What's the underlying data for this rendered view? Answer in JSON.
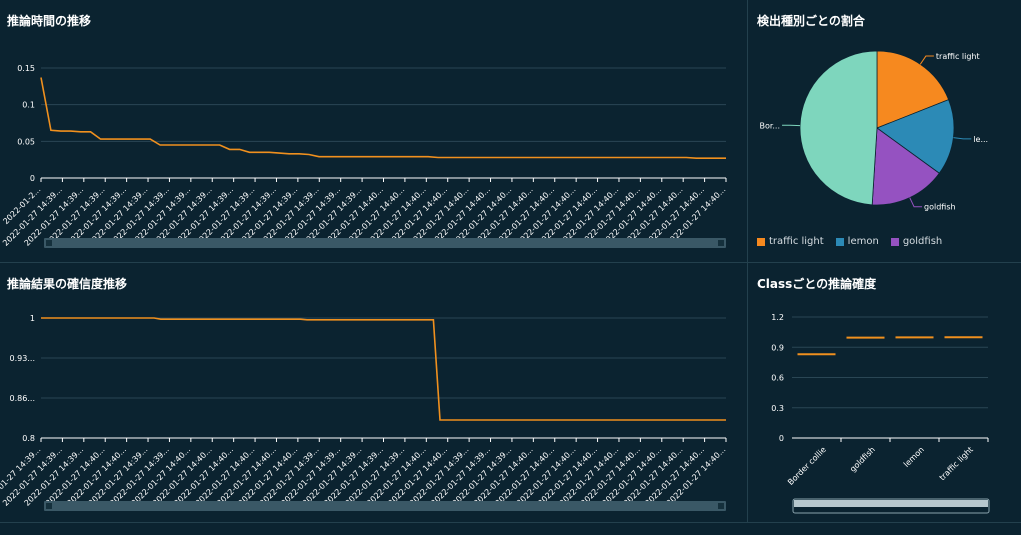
{
  "colors": {
    "background": "#0b2330",
    "grid": "#2a4654",
    "line": "#f0901e",
    "scrollbar": "#3a5866",
    "pie": [
      "#f6891f",
      "#2c8ab6",
      "#9552c1",
      "#7ed6bd"
    ]
  },
  "panels": {
    "inference_time": {
      "title": "推論時間の推移"
    },
    "pie": {
      "title": "検出種別ごとの割合"
    },
    "confidence": {
      "title": "推論結果の確信度推移"
    },
    "class_conf": {
      "title": "Classごとの推論確度"
    }
  },
  "chart_data": [
    {
      "id": "inference_time",
      "type": "line",
      "title": "推論時間の推移",
      "ylim": [
        0,
        0.15
      ],
      "yticks": [
        "0",
        "0.05",
        "0.1",
        "0.15"
      ],
      "ytick_values": [
        0,
        0.05,
        0.1,
        0.15
      ],
      "values": [
        0.137,
        0.065,
        0.064,
        0.064,
        0.063,
        0.063,
        0.053,
        0.053,
        0.053,
        0.053,
        0.053,
        0.053,
        0.045,
        0.045,
        0.045,
        0.045,
        0.045,
        0.045,
        0.045,
        0.039,
        0.039,
        0.035,
        0.035,
        0.035,
        0.034,
        0.033,
        0.033,
        0.032,
        0.029,
        0.029,
        0.029,
        0.029,
        0.029,
        0.029,
        0.029,
        0.029,
        0.029,
        0.029,
        0.029,
        0.029,
        0.028,
        0.028,
        0.028,
        0.028,
        0.028,
        0.028,
        0.028,
        0.028,
        0.028,
        0.028,
        0.028,
        0.028,
        0.028,
        0.028,
        0.028,
        0.028,
        0.028,
        0.028,
        0.028,
        0.028,
        0.028,
        0.028,
        0.028,
        0.028,
        0.028,
        0.028,
        0.027,
        0.027,
        0.027,
        0.027
      ],
      "xlabels": [
        "2022-01-2...",
        "2022-01-27 14:39...",
        "2022-01-27 14:39...",
        "2022-01-27 14:39...",
        "2022-01-27 14:39...",
        "2022-01-27 14:39...",
        "2022-01-27 14:39...",
        "2022-01-27 14:39...",
        "2022-01-27 14:39...",
        "2022-01-27 14:39...",
        "2022-01-27 14:39...",
        "2022-01-27 14:39...",
        "2022-01-27 14:39...",
        "2022-01-27 14:39...",
        "2022-01-27 14:39...",
        "2022-01-27 14:39...",
        "2022-01-27 14:40...",
        "2022-01-27 14:40...",
        "2022-01-27 14:40...",
        "2022-01-27 14:40...",
        "2022-01-27 14:40...",
        "2022-01-27 14:40...",
        "2022-01-27 14:40...",
        "2022-01-27 14:40...",
        "2022-01-27 14:40...",
        "2022-01-27 14:40...",
        "2022-01-27 14:40...",
        "2022-01-27 14:40...",
        "2022-01-27 14:40...",
        "2022-01-27 14:40...",
        "2022-01-27 14:40...",
        "2022-01-27 14:40...",
        "2022-01-27 14:40..."
      ]
    },
    {
      "id": "detection_ratio",
      "type": "pie",
      "title": "検出種別ごとの割合",
      "slices": [
        {
          "label": "traffic light",
          "short_label": "traffic light",
          "value": 0.19
        },
        {
          "label": "lemon",
          "short_label": "le...",
          "value": 0.16
        },
        {
          "label": "goldfish",
          "short_label": "goldfish",
          "value": 0.16
        },
        {
          "label": "Border collie",
          "short_label": "Bor...",
          "value": 0.49
        }
      ],
      "legend": [
        "traffic light",
        "lemon",
        "goldfish"
      ]
    },
    {
      "id": "confidence",
      "type": "line",
      "title": "推論結果の確信度推移",
      "ylim": [
        0.8,
        1.0
      ],
      "yticks": [
        "0.8",
        "0.86...",
        "0.93...",
        "1"
      ],
      "ytick_values": [
        0.8,
        0.8667,
        0.9333,
        1.0
      ],
      "values": [
        1.0,
        1.0,
        1.0,
        1.0,
        1.0,
        1.0,
        1.0,
        1.0,
        1.0,
        1.0,
        1.0,
        1.0,
        1.0,
        1.0,
        1.0,
        1.0,
        1.0,
        1.0,
        0.998,
        0.998,
        0.998,
        0.998,
        0.998,
        0.998,
        0.998,
        0.998,
        0.998,
        0.998,
        0.998,
        0.998,
        0.998,
        0.998,
        0.998,
        0.998,
        0.998,
        0.998,
        0.998,
        0.998,
        0.998,
        0.998,
        0.997,
        0.997,
        0.997,
        0.997,
        0.997,
        0.997,
        0.997,
        0.997,
        0.997,
        0.997,
        0.997,
        0.997,
        0.997,
        0.997,
        0.997,
        0.997,
        0.997,
        0.997,
        0.997,
        0.997,
        0.83,
        0.83,
        0.83,
        0.83,
        0.83,
        0.83,
        0.83,
        0.83,
        0.83,
        0.83,
        0.83,
        0.83,
        0.83,
        0.83,
        0.83,
        0.83,
        0.83,
        0.83,
        0.83,
        0.83,
        0.83,
        0.83,
        0.83,
        0.83,
        0.83,
        0.83,
        0.83,
        0.83,
        0.83,
        0.83,
        0.83,
        0.83,
        0.83,
        0.83,
        0.83,
        0.83,
        0.83,
        0.83,
        0.83,
        0.83,
        0.83,
        0.83,
        0.83,
        0.83
      ],
      "xlabels": [
        "2022-01-27 14:39...",
        "2022-01-27 14:39...",
        "2022-01-27 14:39...",
        "2022-01-27 14:40...",
        "2022-01-27 14:40...",
        "2022-01-27 14:39...",
        "2022-01-27 14:39...",
        "2022-01-27 14:40...",
        "2022-01-27 14:40...",
        "2022-01-27 14:40...",
        "2022-01-27 14:40...",
        "2022-01-27 14:40...",
        "2022-01-27 14:40...",
        "2022-01-27 14:39...",
        "2022-01-27 14:39...",
        "2022-01-27 14:39...",
        "2022-01-27 14:39...",
        "2022-01-27 14:39...",
        "2022-01-27 14:40...",
        "2022-01-27 14:40...",
        "2022-01-27 14:39...",
        "2022-01-27 14:39...",
        "2022-01-27 14:39...",
        "2022-01-27 14:40...",
        "2022-01-27 14:40...",
        "2022-01-27 14:40...",
        "2022-01-27 14:40...",
        "2022-01-27 14:40...",
        "2022-01-27 14:40...",
        "2022-01-27 14:40...",
        "2022-01-27 14:40...",
        "2022-01-27 14:40...",
        "2022-01-27 14:40..."
      ]
    },
    {
      "id": "class_confidence",
      "type": "bar",
      "title": "Classごとの推論確度",
      "ylim": [
        0,
        1.2
      ],
      "yticks": [
        "0",
        "0.3",
        "0.6",
        "0.9",
        "1.2"
      ],
      "ytick_values": [
        0,
        0.3,
        0.6,
        0.9,
        1.2
      ],
      "categories": [
        "Border collie",
        "goldfish",
        "lemon",
        "traffic light"
      ],
      "values": [
        0.83,
        0.995,
        0.998,
        0.999
      ]
    }
  ]
}
